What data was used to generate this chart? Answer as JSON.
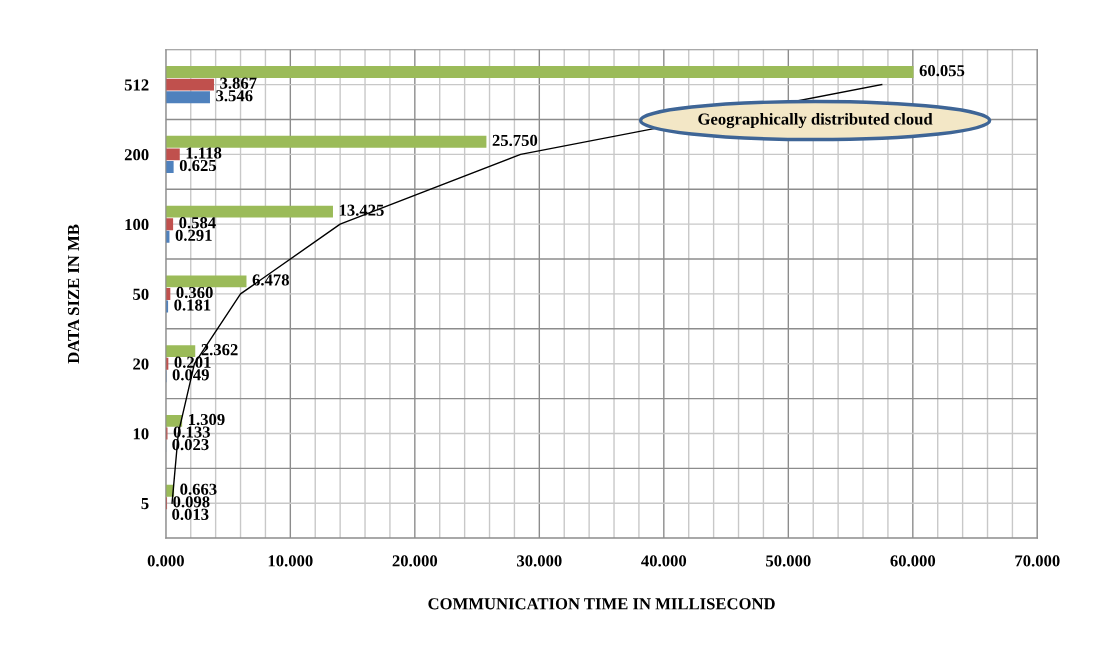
{
  "chart_data": {
    "type": "bar",
    "orientation": "horizontal",
    "xlabel": "COMMUNICATION TIME IN MILLISECOND",
    "ylabel": "DATA SIZE IN MB",
    "categories": [
      "512",
      "200",
      "100",
      "50",
      "20",
      "10",
      "5"
    ],
    "series": [
      {
        "color": "#9bbb59",
        "values": [
          60.055,
          25.75,
          13.425,
          6.478,
          2.362,
          1.309,
          0.663
        ],
        "value_labels": [
          "60.055",
          "25.750",
          "13.425",
          "6.478",
          "2.362",
          "1.309",
          "0.663"
        ]
      },
      {
        "color": "#c0504d",
        "values": [
          3.867,
          1.118,
          0.584,
          0.36,
          0.201,
          0.133,
          0.098
        ],
        "value_labels": [
          "3.867",
          "1.118",
          "0.584",
          "0.360",
          "0.201",
          "0.133",
          "0.098"
        ]
      },
      {
        "color": "#4f81bd",
        "values": [
          3.546,
          0.625,
          0.291,
          0.181,
          0.049,
          0.023,
          0.013
        ],
        "value_labels": [
          "3.546",
          "0.625",
          "0.291",
          "0.181",
          "0.049",
          "0.023",
          "0.013"
        ]
      },
      {
        "type": "line",
        "color": "#000000",
        "values": [
          57.5,
          28.5,
          14,
          6,
          2.3,
          1.0,
          0.5
        ]
      }
    ],
    "xlim": [
      0,
      70
    ],
    "xticks": [
      {
        "value": 0,
        "label": "0.000"
      },
      {
        "value": 10,
        "label": "10.000"
      },
      {
        "value": 20,
        "label": "20.000"
      },
      {
        "value": 30,
        "label": "30.000"
      },
      {
        "value": 40,
        "label": "40.000"
      },
      {
        "value": 50,
        "label": "50.000"
      },
      {
        "value": 60,
        "label": "60.000"
      },
      {
        "value": 70,
        "label": "70.000"
      }
    ],
    "grid": true,
    "annotations": [
      "Geographically distributed cloud"
    ]
  }
}
